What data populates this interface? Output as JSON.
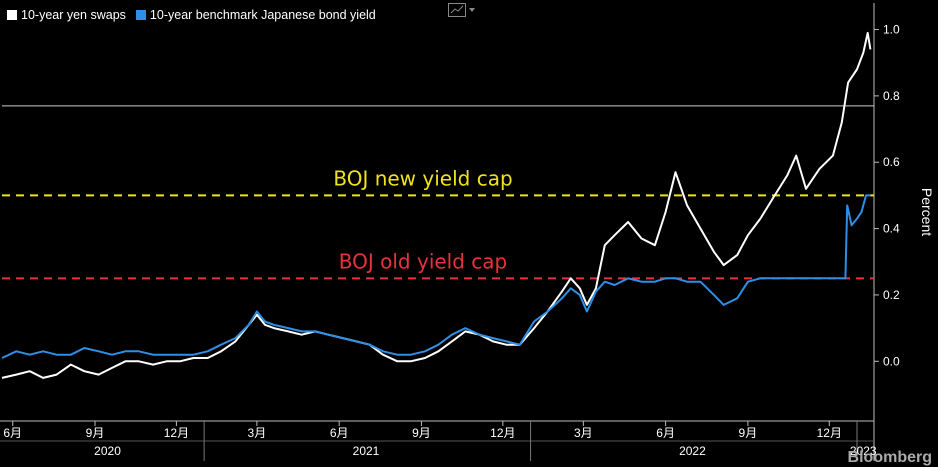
{
  "legend": [
    {
      "label": "10-year yen swaps",
      "color": "#ffffff"
    },
    {
      "label": "10-year benchmark Japanese bond yield",
      "color": "#2f8fe6"
    }
  ],
  "watermark": "Bloomberg",
  "chart_data": {
    "type": "line",
    "title": "",
    "ylabel": "Percent",
    "ylim": [
      -0.18,
      1.08
    ],
    "yticks": [
      0.0,
      0.2,
      0.4,
      0.6,
      0.8,
      1.0
    ],
    "ytick_labels": [
      "0.0",
      "0.2",
      "0.4",
      "0.6",
      "0.8",
      "1.0"
    ],
    "xlim": [
      "2020-05-20",
      "2023-01-20"
    ],
    "xticks": [
      {
        "date": "2020-06-01",
        "label": "6月"
      },
      {
        "date": "2020-09-01",
        "label": "9月"
      },
      {
        "date": "2020-12-01",
        "label": "12月"
      },
      {
        "date": "2021-03-01",
        "label": "3月"
      },
      {
        "date": "2021-06-01",
        "label": "6月"
      },
      {
        "date": "2021-09-01",
        "label": "9月"
      },
      {
        "date": "2021-12-01",
        "label": "12月"
      },
      {
        "date": "2022-03-01",
        "label": "3月"
      },
      {
        "date": "2022-06-01",
        "label": "6月"
      },
      {
        "date": "2022-09-01",
        "label": "9月"
      },
      {
        "date": "2022-12-01",
        "label": "12月"
      }
    ],
    "years": [
      {
        "label": "2020",
        "center": "2020-09-15"
      },
      {
        "label": "2021",
        "center": "2021-07-01"
      },
      {
        "label": "2022",
        "center": "2022-07-01"
      },
      {
        "label": "2023",
        "center": "2023-01-08"
      }
    ],
    "year_dividers": [
      "2021-01-01",
      "2022-01-01",
      "2023-01-01"
    ],
    "reference_lines": [
      {
        "value": 0.5,
        "label": "BOJ new yield cap",
        "color": "#f0e31c",
        "dash": true
      },
      {
        "value": 0.25,
        "label": "BOJ old yield cap",
        "color": "#e8323c",
        "dash": true
      },
      {
        "value": 0.77,
        "label": "",
        "color": "#cccccc",
        "dash": false
      }
    ],
    "series": [
      {
        "name": "10-year yen swaps",
        "color": "#ffffff",
        "points": [
          [
            "2020-05-20",
            -0.05
          ],
          [
            "2020-06-05",
            -0.04
          ],
          [
            "2020-06-20",
            -0.03
          ],
          [
            "2020-07-05",
            -0.05
          ],
          [
            "2020-07-20",
            -0.04
          ],
          [
            "2020-08-05",
            -0.01
          ],
          [
            "2020-08-20",
            -0.03
          ],
          [
            "2020-09-05",
            -0.04
          ],
          [
            "2020-09-20",
            -0.02
          ],
          [
            "2020-10-05",
            0.0
          ],
          [
            "2020-10-20",
            0.0
          ],
          [
            "2020-11-05",
            -0.01
          ],
          [
            "2020-11-20",
            0.0
          ],
          [
            "2020-12-05",
            0.0
          ],
          [
            "2020-12-20",
            0.01
          ],
          [
            "2021-01-05",
            0.01
          ],
          [
            "2021-01-20",
            0.03
          ],
          [
            "2021-02-05",
            0.06
          ],
          [
            "2021-02-20",
            0.11
          ],
          [
            "2021-03-01",
            0.14
          ],
          [
            "2021-03-10",
            0.11
          ],
          [
            "2021-03-20",
            0.1
          ],
          [
            "2021-04-05",
            0.09
          ],
          [
            "2021-04-20",
            0.08
          ],
          [
            "2021-05-05",
            0.09
          ],
          [
            "2021-05-20",
            0.08
          ],
          [
            "2021-06-05",
            0.07
          ],
          [
            "2021-06-20",
            0.06
          ],
          [
            "2021-07-05",
            0.05
          ],
          [
            "2021-07-20",
            0.02
          ],
          [
            "2021-08-05",
            0.0
          ],
          [
            "2021-08-20",
            0.0
          ],
          [
            "2021-09-05",
            0.01
          ],
          [
            "2021-09-20",
            0.03
          ],
          [
            "2021-10-05",
            0.06
          ],
          [
            "2021-10-20",
            0.09
          ],
          [
            "2021-11-05",
            0.08
          ],
          [
            "2021-11-20",
            0.06
          ],
          [
            "2021-12-05",
            0.05
          ],
          [
            "2021-12-20",
            0.05
          ],
          [
            "2022-01-05",
            0.1
          ],
          [
            "2022-01-20",
            0.15
          ],
          [
            "2022-02-05",
            0.21
          ],
          [
            "2022-02-15",
            0.25
          ],
          [
            "2022-02-25",
            0.22
          ],
          [
            "2022-03-05",
            0.17
          ],
          [
            "2022-03-15",
            0.22
          ],
          [
            "2022-03-25",
            0.35
          ],
          [
            "2022-04-05",
            0.38
          ],
          [
            "2022-04-20",
            0.42
          ],
          [
            "2022-05-05",
            0.37
          ],
          [
            "2022-05-20",
            0.35
          ],
          [
            "2022-06-01",
            0.45
          ],
          [
            "2022-06-12",
            0.57
          ],
          [
            "2022-06-25",
            0.47
          ],
          [
            "2022-07-10",
            0.4
          ],
          [
            "2022-07-25",
            0.33
          ],
          [
            "2022-08-05",
            0.29
          ],
          [
            "2022-08-20",
            0.32
          ],
          [
            "2022-09-01",
            0.38
          ],
          [
            "2022-09-15",
            0.43
          ],
          [
            "2022-10-01",
            0.5
          ],
          [
            "2022-10-15",
            0.56
          ],
          [
            "2022-10-25",
            0.62
          ],
          [
            "2022-11-05",
            0.52
          ],
          [
            "2022-11-20",
            0.58
          ],
          [
            "2022-12-05",
            0.62
          ],
          [
            "2022-12-15",
            0.72
          ],
          [
            "2022-12-22",
            0.84
          ],
          [
            "2023-01-01",
            0.88
          ],
          [
            "2023-01-08",
            0.93
          ],
          [
            "2023-01-13",
            0.99
          ],
          [
            "2023-01-16",
            0.94
          ]
        ]
      },
      {
        "name": "10-year benchmark Japanese bond yield",
        "color": "#2f8fe6",
        "points": [
          [
            "2020-05-20",
            0.01
          ],
          [
            "2020-06-05",
            0.03
          ],
          [
            "2020-06-20",
            0.02
          ],
          [
            "2020-07-05",
            0.03
          ],
          [
            "2020-07-20",
            0.02
          ],
          [
            "2020-08-05",
            0.02
          ],
          [
            "2020-08-20",
            0.04
          ],
          [
            "2020-09-05",
            0.03
          ],
          [
            "2020-09-20",
            0.02
          ],
          [
            "2020-10-05",
            0.03
          ],
          [
            "2020-10-20",
            0.03
          ],
          [
            "2020-11-05",
            0.02
          ],
          [
            "2020-11-20",
            0.02
          ],
          [
            "2020-12-05",
            0.02
          ],
          [
            "2020-12-20",
            0.02
          ],
          [
            "2021-01-05",
            0.03
          ],
          [
            "2021-01-20",
            0.05
          ],
          [
            "2021-02-05",
            0.07
          ],
          [
            "2021-02-20",
            0.11
          ],
          [
            "2021-03-01",
            0.15
          ],
          [
            "2021-03-10",
            0.12
          ],
          [
            "2021-03-20",
            0.11
          ],
          [
            "2021-04-05",
            0.1
          ],
          [
            "2021-04-20",
            0.09
          ],
          [
            "2021-05-05",
            0.09
          ],
          [
            "2021-05-20",
            0.08
          ],
          [
            "2021-06-05",
            0.07
          ],
          [
            "2021-06-20",
            0.06
          ],
          [
            "2021-07-05",
            0.05
          ],
          [
            "2021-07-20",
            0.03
          ],
          [
            "2021-08-05",
            0.02
          ],
          [
            "2021-08-20",
            0.02
          ],
          [
            "2021-09-05",
            0.03
          ],
          [
            "2021-09-20",
            0.05
          ],
          [
            "2021-10-05",
            0.08
          ],
          [
            "2021-10-20",
            0.1
          ],
          [
            "2021-11-05",
            0.08
          ],
          [
            "2021-11-20",
            0.07
          ],
          [
            "2021-12-05",
            0.06
          ],
          [
            "2021-12-20",
            0.05
          ],
          [
            "2022-01-05",
            0.12
          ],
          [
            "2022-01-20",
            0.15
          ],
          [
            "2022-02-05",
            0.19
          ],
          [
            "2022-02-15",
            0.22
          ],
          [
            "2022-02-25",
            0.2
          ],
          [
            "2022-03-05",
            0.15
          ],
          [
            "2022-03-15",
            0.21
          ],
          [
            "2022-03-25",
            0.24
          ],
          [
            "2022-04-05",
            0.23
          ],
          [
            "2022-04-20",
            0.25
          ],
          [
            "2022-05-05",
            0.24
          ],
          [
            "2022-05-20",
            0.24
          ],
          [
            "2022-06-01",
            0.25
          ],
          [
            "2022-06-12",
            0.25
          ],
          [
            "2022-06-25",
            0.24
          ],
          [
            "2022-07-10",
            0.24
          ],
          [
            "2022-07-25",
            0.2
          ],
          [
            "2022-08-05",
            0.17
          ],
          [
            "2022-08-20",
            0.19
          ],
          [
            "2022-09-01",
            0.24
          ],
          [
            "2022-09-15",
            0.25
          ],
          [
            "2022-10-01",
            0.25
          ],
          [
            "2022-10-15",
            0.25
          ],
          [
            "2022-10-25",
            0.25
          ],
          [
            "2022-11-05",
            0.25
          ],
          [
            "2022-11-20",
            0.25
          ],
          [
            "2022-12-05",
            0.25
          ],
          [
            "2022-12-15",
            0.25
          ],
          [
            "2022-12-19",
            0.25
          ],
          [
            "2022-12-21",
            0.47
          ],
          [
            "2022-12-26",
            0.41
          ],
          [
            "2023-01-01",
            0.43
          ],
          [
            "2023-01-06",
            0.45
          ],
          [
            "2023-01-11",
            0.5
          ],
          [
            "2023-01-16",
            0.5
          ]
        ]
      }
    ]
  }
}
